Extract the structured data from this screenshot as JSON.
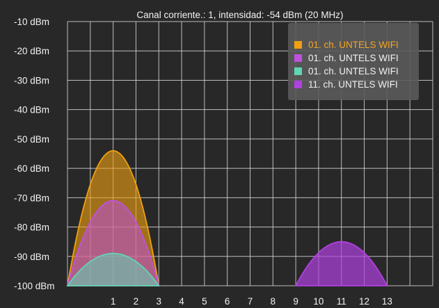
{
  "header": {
    "status": "Canal corriente.: 1, intensidad: -54 dBm (20 MHz)"
  },
  "colors": {
    "background": "#282828",
    "grid": "#d8d8d8",
    "legend_bg": "#5a5a5a",
    "selected_text": "#f5a623"
  },
  "chart_data": {
    "type": "area",
    "x_ticks": [
      "1",
      "2",
      "3",
      "4",
      "5",
      "6",
      "7",
      "8",
      "9",
      "10",
      "11",
      "12",
      "13"
    ],
    "y_ticks": [
      "-10 dBm",
      "-20 dBm",
      "-30 dBm",
      "-40 dBm",
      "-50 dBm",
      "-60 dBm",
      "-70 dBm",
      "-80 dBm",
      "-90 dBm",
      "-100 dBm"
    ],
    "xlim": [
      -1,
      15
    ],
    "ylim": [
      -100,
      -10
    ],
    "legend_position": "top-right",
    "series": [
      {
        "name": "01. ch. UNTELS WIFI",
        "channel": 1,
        "value": -54,
        "color": "#f0a010",
        "fill_opacity": 0.6,
        "selected": true
      },
      {
        "name": "01. ch. UNTELS WIFI",
        "channel": 1,
        "value": -71,
        "color": "#c050e0",
        "fill_opacity": 0.55,
        "selected": false
      },
      {
        "name": "01. ch. UNTELS WIFI",
        "channel": 1,
        "value": -89,
        "color": "#5fd6b4",
        "fill_opacity": 0.55,
        "selected": false
      },
      {
        "name": "11. ch. UNTELS WIFI",
        "channel": 11,
        "value": -85,
        "color": "#b040e0",
        "fill_opacity": 0.7,
        "selected": false
      }
    ]
  }
}
